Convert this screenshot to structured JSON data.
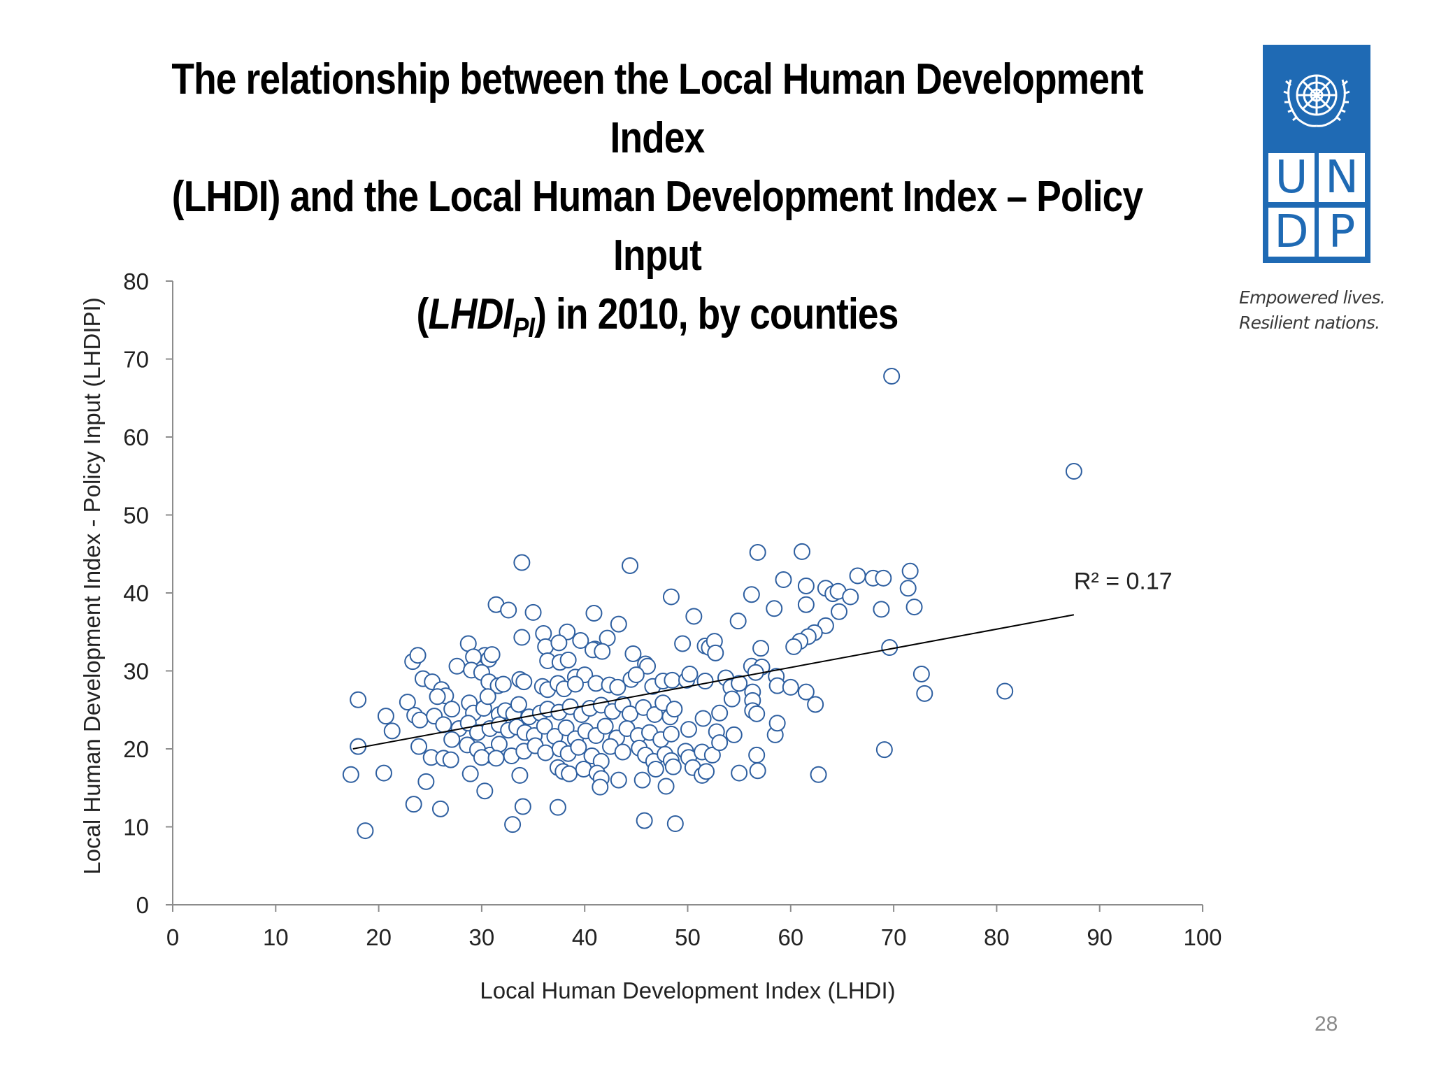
{
  "slide": {
    "title_line1": "The relationship between the Local Human Development Index",
    "title_line2": "(LHDI) and the Local Human Development Index – Policy Input",
    "title_line3_open": "(",
    "title_line3_main": "LHDI",
    "title_line3_sub": "PI",
    "title_line3_rest": ") in 2010, by counties",
    "page_number": "28"
  },
  "logo": {
    "letters": [
      "U",
      "N",
      "D",
      "P"
    ],
    "tagline_line1": "Empowered lives.",
    "tagline_line2": "Resilient nations.",
    "brand_color": "#1f6ab4"
  },
  "chart_data": {
    "type": "scatter",
    "title": "",
    "xlabel": "Local Human Development Index (LHDI)",
    "ylabel": "Local Human Development Index - Policy Input (LHDIPI)",
    "xlim": [
      0,
      100
    ],
    "ylim": [
      0,
      80
    ],
    "xticks": [
      0,
      10,
      20,
      30,
      40,
      50,
      60,
      70,
      80,
      90,
      100
    ],
    "yticks": [
      0,
      10,
      20,
      30,
      40,
      50,
      60,
      70,
      80
    ],
    "grid": false,
    "legend": "none",
    "marker": "open-circle",
    "marker_color": "#2e5fa0",
    "trendline": {
      "type": "linear",
      "x": [
        17.5,
        87.5
      ],
      "y": [
        20.0,
        37.2
      ],
      "label": "R² = 0.17",
      "label_x": 87.5,
      "label_y": 40.5
    },
    "points": [
      [
        69.8,
        67.8
      ],
      [
        87.5,
        55.6
      ],
      [
        33.9,
        43.9
      ],
      [
        44.4,
        43.5
      ],
      [
        56.8,
        45.2
      ],
      [
        61.1,
        45.3
      ],
      [
        59.3,
        41.7
      ],
      [
        61.5,
        40.9
      ],
      [
        63.4,
        40.6
      ],
      [
        64.1,
        39.9
      ],
      [
        64.6,
        40.2
      ],
      [
        65.8,
        39.5
      ],
      [
        66.5,
        42.2
      ],
      [
        68.0,
        41.9
      ],
      [
        69.0,
        41.9
      ],
      [
        71.6,
        42.8
      ],
      [
        71.4,
        40.6
      ],
      [
        72.0,
        38.2
      ],
      [
        68.8,
        37.9
      ],
      [
        61.5,
        38.5
      ],
      [
        64.7,
        37.6
      ],
      [
        58.4,
        38.0
      ],
      [
        56.2,
        39.8
      ],
      [
        48.4,
        39.5
      ],
      [
        31.4,
        38.5
      ],
      [
        32.6,
        37.8
      ],
      [
        35.0,
        37.5
      ],
      [
        40.9,
        37.4
      ],
      [
        43.3,
        36.0
      ],
      [
        50.6,
        37.0
      ],
      [
        54.9,
        36.4
      ],
      [
        63.4,
        35.8
      ],
      [
        62.3,
        34.9
      ],
      [
        61.7,
        34.4
      ],
      [
        60.9,
        33.8
      ],
      [
        60.3,
        33.1
      ],
      [
        69.6,
        33.0
      ],
      [
        33.9,
        34.3
      ],
      [
        36.0,
        34.8
      ],
      [
        38.3,
        35.0
      ],
      [
        39.6,
        33.9
      ],
      [
        42.2,
        34.2
      ],
      [
        41.0,
        32.8
      ],
      [
        40.8,
        32.7
      ],
      [
        41.7,
        32.5
      ],
      [
        36.2,
        33.1
      ],
      [
        37.5,
        33.6
      ],
      [
        28.7,
        33.5
      ],
      [
        30.3,
        32.0
      ],
      [
        30.7,
        31.5
      ],
      [
        31.0,
        32.1
      ],
      [
        29.2,
        31.8
      ],
      [
        23.3,
        31.2
      ],
      [
        23.8,
        32.0
      ],
      [
        44.7,
        32.2
      ],
      [
        45.9,
        30.9
      ],
      [
        46.1,
        30.6
      ],
      [
        49.5,
        33.5
      ],
      [
        51.7,
        33.2
      ],
      [
        52.1,
        33.0
      ],
      [
        52.6,
        33.8
      ],
      [
        52.7,
        32.3
      ],
      [
        57.1,
        32.9
      ],
      [
        56.2,
        30.6
      ],
      [
        57.2,
        30.5
      ],
      [
        56.6,
        29.8
      ],
      [
        58.6,
        29.3
      ],
      [
        58.7,
        28.1
      ],
      [
        60.0,
        27.9
      ],
      [
        61.5,
        27.3
      ],
      [
        62.4,
        25.7
      ],
      [
        72.7,
        29.6
      ],
      [
        73.0,
        27.1
      ],
      [
        80.8,
        27.4
      ],
      [
        36.4,
        31.3
      ],
      [
        37.6,
        31.1
      ],
      [
        38.4,
        31.4
      ],
      [
        39.1,
        29.2
      ],
      [
        40.0,
        29.5
      ],
      [
        24.3,
        29.0
      ],
      [
        25.2,
        28.6
      ],
      [
        27.6,
        30.6
      ],
      [
        29.0,
        30.1
      ],
      [
        30.0,
        29.8
      ],
      [
        30.7,
        28.6
      ],
      [
        31.6,
        28.1
      ],
      [
        32.1,
        28.3
      ],
      [
        33.7,
        28.9
      ],
      [
        34.1,
        28.6
      ],
      [
        35.9,
        28.0
      ],
      [
        36.4,
        27.6
      ],
      [
        37.4,
        28.4
      ],
      [
        38.0,
        27.7
      ],
      [
        39.1,
        28.3
      ],
      [
        41.1,
        28.4
      ],
      [
        42.4,
        28.2
      ],
      [
        43.2,
        27.9
      ],
      [
        44.5,
        28.9
      ],
      [
        45.0,
        29.5
      ],
      [
        46.6,
        28.0
      ],
      [
        47.6,
        28.7
      ],
      [
        48.5,
        28.8
      ],
      [
        49.9,
        28.8
      ],
      [
        50.2,
        29.6
      ],
      [
        51.7,
        28.7
      ],
      [
        53.7,
        29.1
      ],
      [
        54.2,
        27.9
      ],
      [
        55.0,
        28.4
      ],
      [
        56.3,
        27.3
      ],
      [
        54.3,
        26.4
      ],
      [
        56.3,
        26.2
      ],
      [
        26.1,
        27.6
      ],
      [
        26.5,
        26.8
      ],
      [
        25.7,
        26.7
      ],
      [
        27.1,
        25.1
      ],
      [
        28.8,
        25.9
      ],
      [
        29.2,
        24.6
      ],
      [
        30.2,
        25.2
      ],
      [
        30.6,
        26.7
      ],
      [
        31.7,
        24.4
      ],
      [
        32.3,
        24.9
      ],
      [
        33.1,
        24.5
      ],
      [
        33.6,
        25.7
      ],
      [
        34.6,
        24.1
      ],
      [
        35.7,
        24.6
      ],
      [
        36.4,
        25.1
      ],
      [
        37.5,
        24.7
      ],
      [
        38.6,
        25.4
      ],
      [
        39.7,
        24.4
      ],
      [
        40.5,
        25.2
      ],
      [
        41.6,
        25.6
      ],
      [
        42.7,
        24.8
      ],
      [
        43.7,
        25.7
      ],
      [
        44.4,
        24.5
      ],
      [
        45.7,
        25.3
      ],
      [
        46.8,
        24.4
      ],
      [
        47.6,
        25.9
      ],
      [
        48.3,
        24.1
      ],
      [
        48.7,
        25.1
      ],
      [
        22.8,
        26.0
      ],
      [
        20.7,
        24.2
      ],
      [
        21.3,
        22.3
      ],
      [
        23.5,
        24.3
      ],
      [
        24.0,
        23.7
      ],
      [
        25.4,
        24.2
      ],
      [
        26.3,
        23.1
      ],
      [
        27.8,
        22.6
      ],
      [
        28.7,
        23.3
      ],
      [
        29.6,
        22.1
      ],
      [
        30.8,
        22.6
      ],
      [
        31.7,
        23.1
      ],
      [
        32.6,
        22.4
      ],
      [
        33.4,
        22.8
      ],
      [
        34.2,
        22.1
      ],
      [
        35.1,
        21.7
      ],
      [
        36.1,
        22.9
      ],
      [
        37.1,
        21.6
      ],
      [
        38.2,
        22.7
      ],
      [
        39.1,
        21.3
      ],
      [
        40.1,
        22.3
      ],
      [
        41.1,
        21.7
      ],
      [
        42.0,
        22.9
      ],
      [
        43.1,
        21.4
      ],
      [
        44.1,
        22.6
      ],
      [
        45.2,
        21.7
      ],
      [
        46.3,
        22.1
      ],
      [
        47.4,
        21.2
      ],
      [
        48.4,
        21.9
      ],
      [
        50.1,
        22.5
      ],
      [
        51.5,
        23.9
      ],
      [
        53.1,
        24.6
      ],
      [
        52.8,
        22.2
      ],
      [
        18.0,
        26.3
      ],
      [
        18.0,
        20.3
      ],
      [
        23.9,
        20.3
      ],
      [
        27.1,
        21.2
      ],
      [
        28.6,
        20.5
      ],
      [
        29.6,
        19.9
      ],
      [
        30.8,
        19.2
      ],
      [
        31.7,
        20.6
      ],
      [
        32.9,
        19.1
      ],
      [
        34.1,
        19.7
      ],
      [
        35.2,
        20.4
      ],
      [
        36.2,
        19.5
      ],
      [
        37.6,
        20.0
      ],
      [
        38.4,
        19.4
      ],
      [
        39.4,
        20.2
      ],
      [
        40.7,
        19.1
      ],
      [
        41.6,
        18.4
      ],
      [
        42.5,
        20.3
      ],
      [
        43.7,
        19.6
      ],
      [
        45.3,
        20.1
      ],
      [
        45.9,
        19.2
      ],
      [
        46.7,
        18.4
      ],
      [
        47.8,
        19.3
      ],
      [
        48.4,
        18.5
      ],
      [
        49.8,
        19.7
      ],
      [
        50.1,
        18.9
      ],
      [
        51.4,
        19.6
      ],
      [
        52.4,
        19.2
      ],
      [
        53.1,
        20.8
      ],
      [
        54.5,
        21.8
      ],
      [
        56.7,
        19.2
      ],
      [
        58.5,
        21.8
      ],
      [
        58.7,
        23.3
      ],
      [
        56.3,
        24.9
      ],
      [
        56.7,
        24.5
      ],
      [
        25.1,
        18.9
      ],
      [
        26.3,
        18.8
      ],
      [
        27.0,
        18.6
      ],
      [
        28.9,
        16.8
      ],
      [
        30.0,
        18.9
      ],
      [
        31.4,
        18.8
      ],
      [
        33.7,
        16.6
      ],
      [
        37.4,
        17.6
      ],
      [
        37.9,
        17.1
      ],
      [
        38.5,
        16.8
      ],
      [
        39.9,
        17.4
      ],
      [
        41.2,
        16.9
      ],
      [
        41.6,
        16.2
      ],
      [
        43.3,
        16.0
      ],
      [
        41.5,
        15.1
      ],
      [
        45.6,
        16.0
      ],
      [
        46.9,
        17.4
      ],
      [
        47.9,
        15.2
      ],
      [
        48.6,
        17.7
      ],
      [
        50.5,
        17.6
      ],
      [
        51.4,
        16.6
      ],
      [
        51.8,
        17.1
      ],
      [
        55.0,
        16.9
      ],
      [
        56.8,
        17.2
      ],
      [
        62.7,
        16.7
      ],
      [
        69.1,
        19.9
      ],
      [
        17.3,
        16.7
      ],
      [
        20.5,
        16.9
      ],
      [
        24.6,
        15.8
      ],
      [
        23.4,
        12.9
      ],
      [
        26.0,
        12.3
      ],
      [
        30.3,
        14.6
      ],
      [
        34.0,
        12.6
      ],
      [
        37.4,
        12.5
      ],
      [
        33.0,
        10.3
      ],
      [
        45.8,
        10.8
      ],
      [
        48.8,
        10.4
      ],
      [
        18.7,
        9.5
      ]
    ]
  }
}
